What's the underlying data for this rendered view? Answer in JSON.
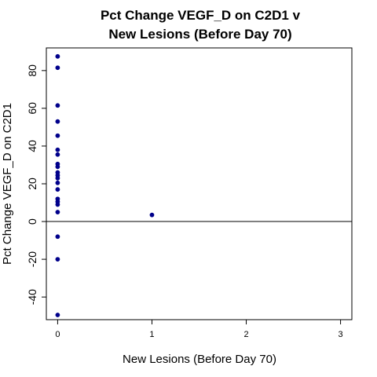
{
  "chart_data": {
    "type": "scatter",
    "title_lines": [
      "Pct Change VEGF_D on C2D1 v",
      "New Lesions (Before Day 70)"
    ],
    "xlabel": "New Lesions (Before Day 70)",
    "ylabel": "Pct Change VEGF_D on C2D1",
    "xlim": [
      -0.12,
      3.12
    ],
    "ylim": [
      -52,
      92
    ],
    "x_ticks": [
      0,
      1,
      2,
      3
    ],
    "x_tick_labels": [
      "0",
      "1",
      "2",
      "3"
    ],
    "y_ticks": [
      -40,
      -20,
      0,
      20,
      40,
      60,
      80
    ],
    "y_tick_labels": [
      "-40",
      "-20",
      "0",
      "20",
      "40",
      "60",
      "80"
    ],
    "reference_line_y": 0,
    "grid": false,
    "legend": "none",
    "point_color": "#00008B",
    "points": [
      {
        "x": 0,
        "y": 87.5
      },
      {
        "x": 0,
        "y": 81.5
      },
      {
        "x": 0,
        "y": 61.5
      },
      {
        "x": 0,
        "y": 53
      },
      {
        "x": 0,
        "y": 45.5
      },
      {
        "x": 0,
        "y": 38
      },
      {
        "x": 0,
        "y": 35.5
      },
      {
        "x": 0,
        "y": 30.5
      },
      {
        "x": 0,
        "y": 29
      },
      {
        "x": 0,
        "y": 26
      },
      {
        "x": 0,
        "y": 24.5
      },
      {
        "x": 0,
        "y": 23
      },
      {
        "x": 0,
        "y": 20.5
      },
      {
        "x": 0,
        "y": 17
      },
      {
        "x": 0,
        "y": 12
      },
      {
        "x": 0,
        "y": 10.5
      },
      {
        "x": 0,
        "y": 9
      },
      {
        "x": 0,
        "y": 5
      },
      {
        "x": 0,
        "y": -8
      },
      {
        "x": 0,
        "y": -20
      },
      {
        "x": 0,
        "y": -49.5
      },
      {
        "x": 1,
        "y": 3.5
      }
    ]
  }
}
